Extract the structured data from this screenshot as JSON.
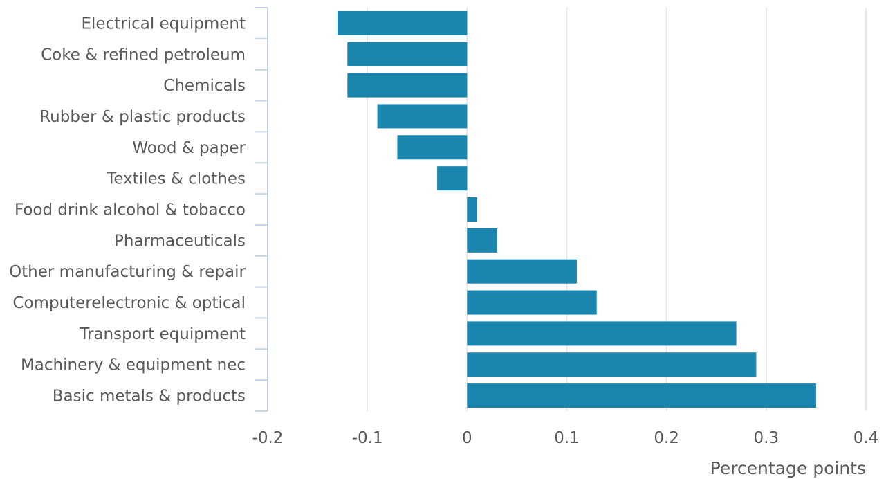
{
  "chart_data": {
    "type": "bar",
    "orientation": "horizontal",
    "categories": [
      "Electrical equipment",
      "Coke & refined petroleum",
      "Chemicals",
      "Rubber & plastic products",
      "Wood & paper",
      "Textiles & clothes",
      "Food drink alcohol & tobacco",
      "Pharmaceuticals",
      "Other manufacturing & repair",
      "Computerelectronic & optical",
      "Transport equipment",
      "Machinery & equipment nec",
      "Basic metals & products"
    ],
    "values": [
      -0.13,
      -0.12,
      -0.12,
      -0.09,
      -0.07,
      -0.03,
      0.01,
      0.03,
      0.11,
      0.13,
      0.27,
      0.29,
      0.35
    ],
    "xlabel": "Percentage points",
    "ylabel": "",
    "xlim": [
      -0.2,
      0.4
    ],
    "xticks": [
      "-0.2",
      "-0.1",
      "0",
      "0.1",
      "0.2",
      "0.3",
      "0.4"
    ],
    "xtick_values": [
      -0.2,
      -0.1,
      0,
      0.1,
      0.2,
      0.3,
      0.4
    ],
    "grid": "vertical",
    "legend": "none",
    "colors": {
      "bar": "#1a85ad",
      "grid": "#e3e3e3",
      "axis": "#c5d3e6",
      "text": "#595959"
    }
  }
}
